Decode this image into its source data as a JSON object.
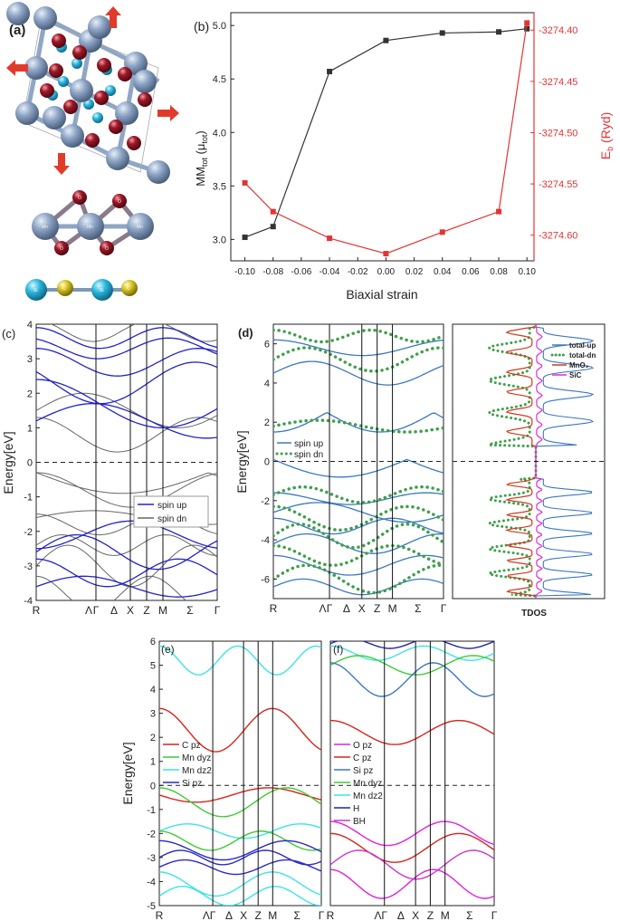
{
  "panel_labels": {
    "a": "(a)",
    "b": "(b)",
    "c": "(c)",
    "d": "(d)",
    "e": "(e)",
    "f": "(f)"
  },
  "atoms": {
    "mn": "Mn",
    "o": "O",
    "si": "Si",
    "c": "C"
  },
  "colors": {
    "mn": "#7f97b9",
    "o": "#8e1420",
    "si": "#2bb7dd",
    "c": "#d6c21c",
    "arrow": "#e23a2a",
    "black_series": "#333333",
    "red_series": "#e33434",
    "spin_up": "#2323c8",
    "spin_dn": "#666666",
    "blue_line": "#3a78c0",
    "green_dot": "#3ea04a",
    "mno2": "#d03a1f",
    "sic": "#e02ad8",
    "c_pz": "#d8241b",
    "mn_dyz": "#3ecb34",
    "mn_dz2": "#3de4e4",
    "si_pz": "#2a2acb",
    "o_pz": "#e020e0",
    "h": "#2424a8",
    "bh": "#c838c8"
  },
  "chart_data": [
    {
      "id": "b",
      "type": "line",
      "xlabel": "Biaxial strain",
      "ylabel_left": "MM_tot (μB)",
      "ylabel_left_main": "MM",
      "ylabel_left_sub": "tot",
      "ylabel_left_unit": " (μ",
      "ylabel_left_unit_sub": "B",
      "ylabel_left_close": ")",
      "ylabel_right": "E_b (Ryd)",
      "ylabel_right_main": "E",
      "ylabel_right_sub": "b",
      "ylabel_right_unit": " (Ryd)",
      "xlim": [
        -0.11,
        0.105
      ],
      "ylim_left": [
        2.8,
        5.12
      ],
      "ylim_right": [
        -3274.625,
        -3274.383
      ],
      "x_ticks": [
        "-0.10",
        "-0.08",
        "-0.06",
        "-0.04",
        "-0.02",
        "0.00",
        "0.02",
        "0.04",
        "0.06",
        "0.08",
        "0.10"
      ],
      "y_ticks_left": [
        "3.0",
        "3.5",
        "4.0",
        "4.5",
        "5.0"
      ],
      "y_ticks_right": [
        "-3274.40",
        "-3274.45",
        "-3274.50",
        "-3274.55",
        "-3274.60"
      ],
      "series": [
        {
          "axis": "left",
          "x": [
            -0.1,
            -0.08,
            -0.04,
            0.0,
            0.04,
            0.08,
            0.1
          ],
          "y": [
            3.02,
            3.12,
            4.57,
            4.86,
            4.93,
            4.94,
            4.97
          ]
        },
        {
          "axis": "right",
          "x": [
            -0.1,
            -0.08,
            -0.04,
            0.0,
            0.04,
            0.08,
            0.1
          ],
          "y": [
            -3274.549,
            -3274.577,
            -3274.603,
            -3274.618,
            -3274.597,
            -3274.577,
            -3274.393
          ]
        }
      ]
    },
    {
      "id": "c",
      "type": "line",
      "ylabel": "Energy[eV]",
      "ylim": [
        -4,
        4
      ],
      "y_ticks": [
        "4",
        "3",
        "2",
        "1",
        "0",
        "-1",
        "-2",
        "-3",
        "-4"
      ],
      "k_labels": [
        "R",
        "Λ",
        "Γ",
        "Δ",
        "X",
        "Z",
        "M",
        "Σ",
        "Γ"
      ],
      "legend": [
        "spin up",
        "spin dn"
      ]
    },
    {
      "id": "d",
      "type": "line",
      "ylabel": "Energy[eV]",
      "ylim": [
        -7,
        7
      ],
      "y_ticks": [
        "6",
        "4",
        "2",
        "0",
        "-2",
        "-4",
        "-6"
      ],
      "k_labels": [
        "R",
        "Λ",
        "Γ",
        "Δ",
        "X",
        "Z",
        "M",
        "Σ",
        "Γ"
      ],
      "legend": [
        "spin up",
        "spin dn"
      ],
      "dos_xlabel": "TDOS",
      "dos_legend": [
        "total-up",
        "total-dn",
        "MnO₂",
        "SiC"
      ]
    },
    {
      "id": "e",
      "type": "line",
      "ylabel": "Energy[eV]",
      "ylim": [
        -5,
        6
      ],
      "y_ticks": [
        "6",
        "5",
        "4",
        "3",
        "2",
        "1",
        "0",
        "-1",
        "-2",
        "-3",
        "-4",
        "-5"
      ],
      "k_labels": [
        "R",
        "Λ",
        "Γ",
        "Δ",
        "X",
        "Z",
        "M",
        "Σ",
        "Γ"
      ],
      "legend": [
        "C pz",
        "Mn dyz",
        "Mn dz2",
        "Si pz"
      ]
    },
    {
      "id": "f",
      "type": "line",
      "ylim": [
        -5,
        6
      ],
      "k_labels": [
        "R",
        "Λ",
        "Γ",
        "Δ",
        "X",
        "Z",
        "M",
        "Σ",
        "Γ"
      ],
      "legend": [
        "O pz",
        "C pz",
        "Si pz",
        "Mn dyz",
        "Mn dz2",
        "H",
        "BH"
      ]
    }
  ]
}
